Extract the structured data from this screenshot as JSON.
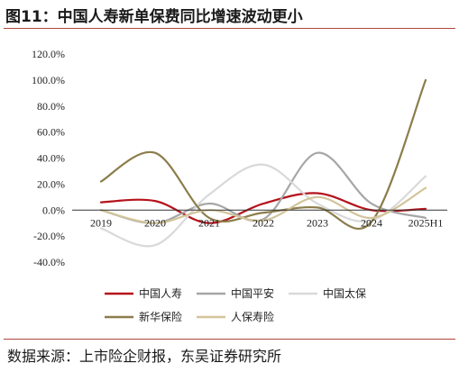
{
  "figure": {
    "title": "图11：中国人寿新单保费同比增速波动更小",
    "source": "数据来源：上市险企财报，东吴证券研究所"
  },
  "chart_data": {
    "type": "line",
    "title": "",
    "xlabel": "",
    "ylabel": "",
    "categories": [
      "2019",
      "2020",
      "2021",
      "2022",
      "2023",
      "2024",
      "2025H1"
    ],
    "ylim": [
      -40,
      120
    ],
    "yticks": [
      -40,
      -20,
      0,
      20,
      40,
      60,
      80,
      100,
      120
    ],
    "ytick_labels": [
      "-40.0%",
      "-20.0%",
      "0.0%",
      "20.0%",
      "40.0%",
      "60.0%",
      "80.0%",
      "100.0%",
      "120.0%"
    ],
    "smooth": true,
    "grid": false,
    "legend_position": "bottom",
    "series": [
      {
        "name": "中国人寿",
        "color": "#b5121b",
        "values": [
          6,
          7,
          -10,
          5,
          13,
          0,
          1
        ]
      },
      {
        "name": "中国平安",
        "color": "#a6a6a6",
        "values": [
          0,
          -10,
          5,
          -7,
          44,
          5,
          -6
        ]
      },
      {
        "name": "中国太保",
        "color": "#d9d9d9",
        "values": [
          -14,
          -27,
          12,
          35,
          5,
          -8,
          26
        ]
      },
      {
        "name": "新华保险",
        "color": "#8b7d4a",
        "values": [
          22,
          44,
          -6,
          -2,
          2,
          -9,
          100
        ]
      },
      {
        "name": "人保寿险",
        "color": "#d2c49a",
        "values": [
          0,
          -10,
          0,
          -8,
          10,
          -6,
          17
        ]
      }
    ]
  }
}
